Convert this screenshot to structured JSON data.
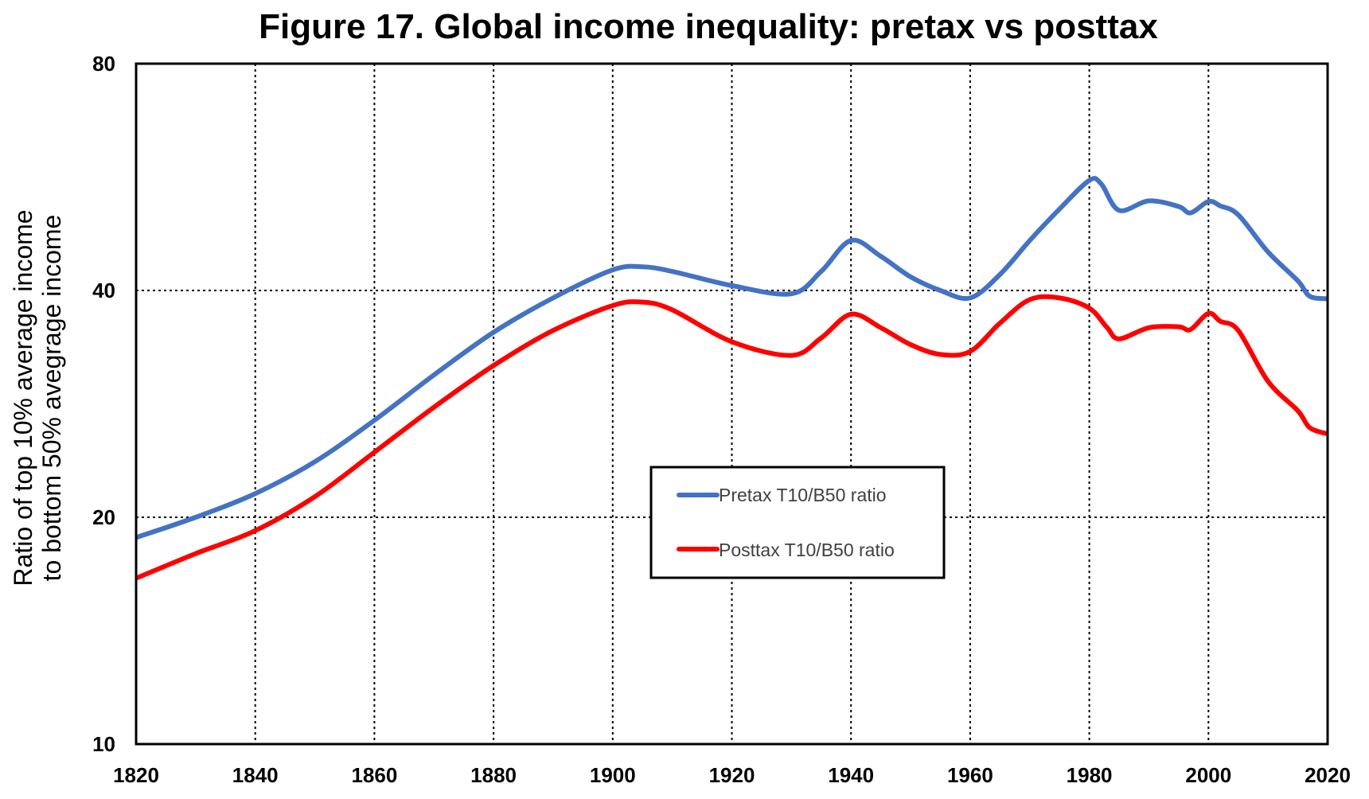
{
  "chart_data": {
    "type": "line",
    "title": "Figure 17. Global income inequality: pretax vs posttax",
    "xlabel": "",
    "ylabel_lines": [
      "Ratio of top 10% average income",
      "to bottom 50% avegrage income"
    ],
    "yscale": "log",
    "xlim": [
      1820,
      2020
    ],
    "ylim": [
      10,
      80
    ],
    "x_ticks": [
      1820,
      1840,
      1860,
      1880,
      1900,
      1920,
      1940,
      1960,
      1980,
      2000,
      2020
    ],
    "y_ticks": [
      10,
      20,
      40,
      80
    ],
    "grid": true,
    "legend_position": "center",
    "series": [
      {
        "name": "Pretax T10/B50 ratio",
        "color": "#4472C4",
        "x": [
          1820,
          1830,
          1840,
          1850,
          1860,
          1870,
          1880,
          1890,
          1900,
          1905,
          1910,
          1920,
          1930,
          1935,
          1940,
          1945,
          1950,
          1955,
          1960,
          1965,
          1970,
          1975,
          1980,
          1982,
          1985,
          1990,
          1995,
          1997,
          2000,
          2002,
          2005,
          2010,
          2015,
          2017,
          2020
        ],
        "y": [
          18.8,
          20.0,
          21.5,
          23.7,
          26.9,
          30.9,
          35.2,
          39.1,
          42.6,
          43.0,
          42.4,
          40.6,
          39.6,
          42.4,
          46.6,
          44.4,
          41.7,
          40.0,
          39.1,
          42.0,
          46.6,
          51.3,
          56.0,
          55.4,
          51.1,
          52.6,
          51.7,
          50.7,
          52.5,
          51.8,
          50.4,
          45.0,
          41.2,
          39.3,
          39.0
        ]
      },
      {
        "name": "Posttax T10/B50 ratio",
        "color": "#FF0000",
        "x": [
          1820,
          1830,
          1840,
          1850,
          1860,
          1870,
          1880,
          1890,
          1900,
          1905,
          1910,
          1920,
          1930,
          1935,
          1940,
          1945,
          1950,
          1955,
          1960,
          1965,
          1970,
          1975,
          1980,
          1983,
          1985,
          1990,
          1995,
          1997,
          2000,
          2002,
          2005,
          2010,
          2015,
          2017,
          2020
        ],
        "y": [
          16.6,
          17.9,
          19.2,
          21.3,
          24.4,
          28.0,
          31.8,
          35.4,
          38.2,
          38.6,
          37.7,
          34.2,
          32.8,
          34.6,
          37.2,
          35.7,
          33.9,
          32.9,
          33.2,
          36.2,
          38.9,
          39.1,
          37.9,
          35.7,
          34.5,
          35.7,
          35.8,
          35.5,
          37.3,
          36.4,
          35.4,
          30.3,
          27.7,
          26.3,
          25.8
        ]
      }
    ]
  }
}
